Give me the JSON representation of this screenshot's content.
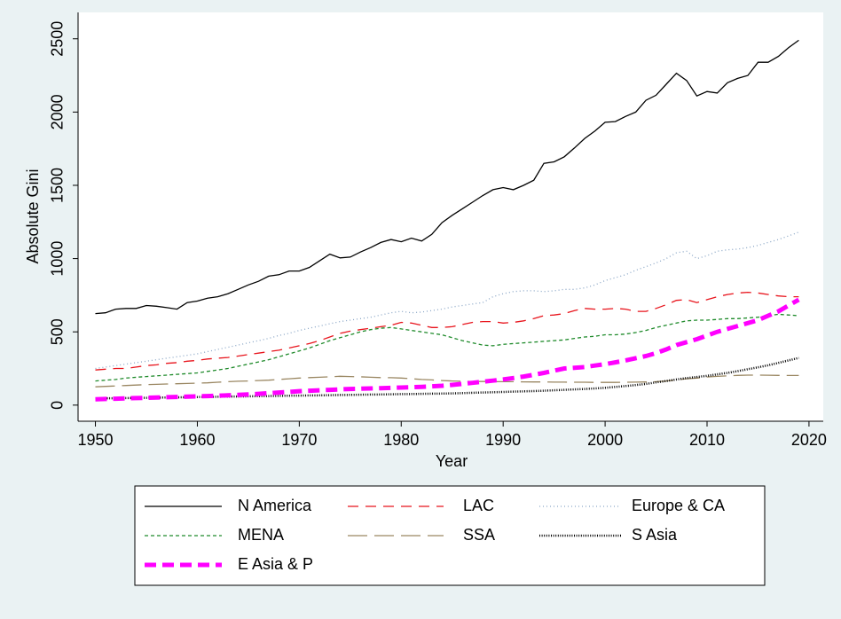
{
  "chart_data": {
    "type": "line",
    "x_label": "Year",
    "y_label": "Absolute Gini",
    "x": [
      1950,
      1951,
      1952,
      1953,
      1954,
      1955,
      1956,
      1957,
      1958,
      1959,
      1960,
      1961,
      1962,
      1963,
      1964,
      1965,
      1966,
      1967,
      1968,
      1969,
      1970,
      1971,
      1972,
      1973,
      1974,
      1975,
      1976,
      1977,
      1978,
      1979,
      1980,
      1981,
      1982,
      1983,
      1984,
      1985,
      1986,
      1987,
      1988,
      1989,
      1990,
      1991,
      1992,
      1993,
      1994,
      1995,
      1996,
      1997,
      1998,
      1999,
      2000,
      2001,
      2002,
      2003,
      2004,
      2005,
      2006,
      2007,
      2008,
      2009,
      2010,
      2011,
      2012,
      2013,
      2014,
      2015,
      2016,
      2017,
      2018,
      2019
    ],
    "xlim": [
      1948.3,
      2021.4
    ],
    "xticks": [
      1950,
      1960,
      1970,
      1980,
      1990,
      2000,
      2010,
      2020
    ],
    "ylim": [
      -110,
      2680
    ],
    "yticks": [
      0,
      500,
      1000,
      1500,
      2000,
      2500
    ],
    "series": [
      {
        "name": "N America",
        "color": "#000000",
        "width": 1.3,
        "dash": "none",
        "values": [
          625,
          630,
          655,
          660,
          660,
          680,
          675,
          665,
          655,
          700,
          710,
          730,
          740,
          760,
          790,
          820,
          845,
          880,
          890,
          915,
          915,
          940,
          985,
          1030,
          1005,
          1010,
          1045,
          1075,
          1110,
          1130,
          1115,
          1140,
          1120,
          1165,
          1245,
          1295,
          1340,
          1385,
          1430,
          1470,
          1485,
          1470,
          1500,
          1535,
          1650,
          1660,
          1695,
          1755,
          1820,
          1870,
          1930,
          1935,
          1970,
          2000,
          2080,
          2115,
          2190,
          2265,
          2215,
          2110,
          2140,
          2130,
          2200,
          2230,
          2250,
          2340,
          2340,
          2380,
          2440,
          2490
        ]
      },
      {
        "name": "LAC",
        "color": "#e8141c",
        "width": 1.3,
        "dash": "12 8",
        "values": [
          240,
          245,
          250,
          250,
          260,
          270,
          275,
          285,
          290,
          300,
          305,
          315,
          320,
          325,
          335,
          345,
          355,
          365,
          375,
          390,
          405,
          420,
          440,
          465,
          490,
          505,
          515,
          525,
          535,
          545,
          565,
          560,
          545,
          530,
          530,
          535,
          550,
          565,
          570,
          570,
          560,
          565,
          575,
          590,
          610,
          615,
          625,
          645,
          660,
          655,
          655,
          660,
          655,
          640,
          640,
          660,
          685,
          715,
          720,
          700,
          720,
          740,
          755,
          765,
          770,
          765,
          755,
          745,
          740,
          740
        ]
      },
      {
        "name": "Europe & CA",
        "color": "#8aa6c6",
        "width": 1.3,
        "dash": "1 3",
        "values": [
          250,
          260,
          270,
          280,
          290,
          300,
          310,
          320,
          330,
          340,
          350,
          365,
          380,
          395,
          410,
          425,
          440,
          455,
          475,
          490,
          510,
          525,
          540,
          555,
          570,
          580,
          590,
          600,
          615,
          630,
          640,
          630,
          635,
          645,
          655,
          670,
          680,
          690,
          700,
          740,
          760,
          775,
          780,
          780,
          775,
          780,
          790,
          790,
          800,
          820,
          850,
          870,
          890,
          920,
          945,
          970,
          1000,
          1040,
          1050,
          1000,
          1020,
          1050,
          1060,
          1065,
          1075,
          1090,
          1110,
          1130,
          1155,
          1180
        ]
      },
      {
        "name": "MENA",
        "color": "#1e8a2a",
        "width": 1.3,
        "dash": "4 3",
        "values": [
          165,
          170,
          175,
          185,
          190,
          195,
          200,
          205,
          210,
          215,
          220,
          230,
          240,
          250,
          265,
          280,
          295,
          310,
          330,
          350,
          370,
          390,
          415,
          440,
          460,
          480,
          500,
          515,
          525,
          530,
          520,
          510,
          500,
          490,
          480,
          460,
          440,
          425,
          410,
          405,
          415,
          420,
          425,
          430,
          435,
          440,
          445,
          455,
          465,
          470,
          480,
          480,
          485,
          495,
          510,
          530,
          545,
          560,
          575,
          580,
          580,
          585,
          590,
          590,
          595,
          600,
          610,
          620,
          615,
          610
        ]
      },
      {
        "name": "SSA",
        "color": "#9a8762",
        "width": 1.3,
        "dash": "22 8",
        "values": [
          125,
          128,
          131,
          134,
          137,
          140,
          142,
          144,
          146,
          148,
          150,
          152,
          156,
          160,
          163,
          165,
          168,
          170,
          175,
          180,
          185,
          188,
          190,
          193,
          197,
          195,
          193,
          190,
          188,
          187,
          185,
          180,
          175,
          172,
          168,
          165,
          163,
          162,
          161,
          160,
          160,
          160,
          159,
          158,
          158,
          157,
          157,
          156,
          156,
          155,
          155,
          155,
          156,
          157,
          158,
          160,
          165,
          172,
          180,
          185,
          192,
          196,
          200,
          203,
          205,
          205,
          204,
          203,
          202,
          202
        ]
      },
      {
        "name": "S Asia",
        "color": "#000000",
        "width": 2.5,
        "dash": "1 1.6",
        "values": [
          45,
          46,
          47,
          48,
          49,
          50,
          51,
          52,
          53,
          54,
          55,
          56,
          57,
          58,
          59,
          60,
          61,
          62,
          63,
          64,
          65,
          66,
          67,
          68,
          69,
          70,
          71,
          72,
          73,
          74,
          75,
          76,
          77,
          78,
          79,
          80,
          82,
          84,
          86,
          88,
          90,
          92,
          94,
          96,
          98,
          101,
          104,
          107,
          110,
          114,
          118,
          124,
          130,
          137,
          145,
          155,
          165,
          175,
          185,
          192,
          200,
          210,
          220,
          232,
          245,
          258,
          272,
          288,
          305,
          322
        ]
      },
      {
        "name": "E Asia & P",
        "color": "#ff00ff",
        "width": 5,
        "dash": "13 7",
        "values": [
          40,
          42,
          44,
          46,
          48,
          50,
          52,
          54,
          56,
          58,
          60,
          62,
          64,
          67,
          70,
          73,
          77,
          81,
          86,
          90,
          95,
          98,
          101,
          104,
          107,
          110,
          112,
          114,
          116,
          118,
          120,
          122,
          125,
          128,
          132,
          138,
          145,
          152,
          160,
          167,
          175,
          185,
          195,
          207,
          220,
          235,
          250,
          255,
          260,
          270,
          280,
          292,
          305,
          320,
          335,
          355,
          380,
          410,
          430,
          450,
          475,
          500,
          520,
          540,
          560,
          580,
          610,
          640,
          680,
          720
        ]
      }
    ]
  }
}
